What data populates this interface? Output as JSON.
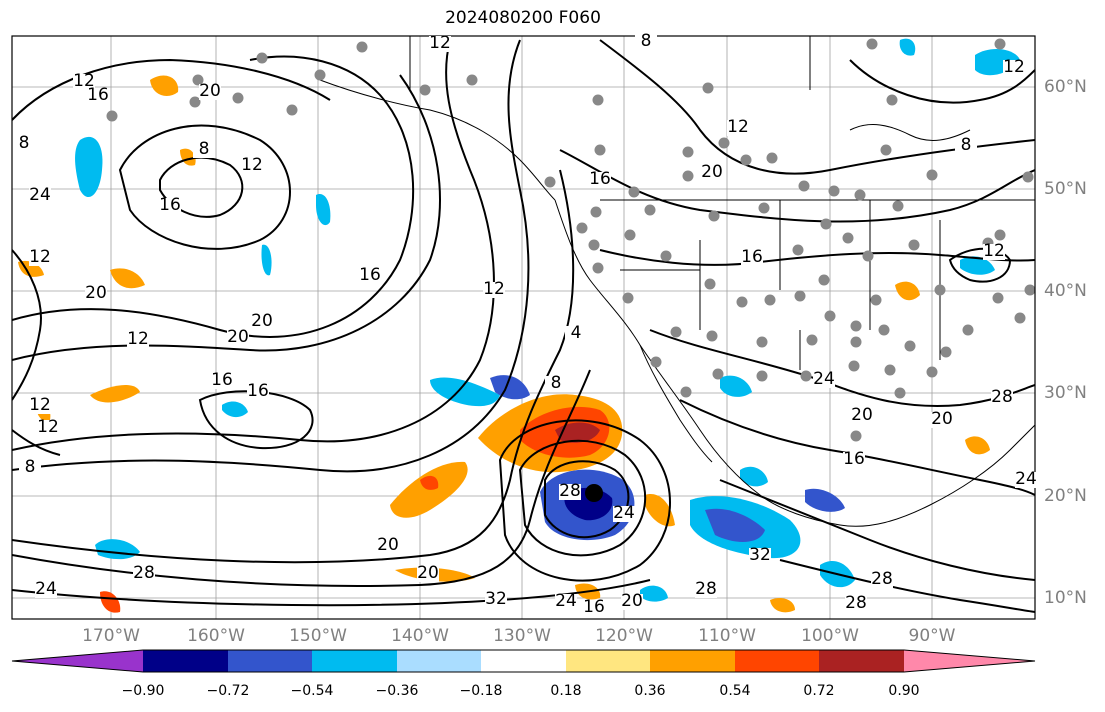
{
  "title": "2024080200 F060",
  "lon_labels": [
    "170°W",
    "160°W",
    "150°W",
    "140°W",
    "130°W",
    "120°W",
    "110°W",
    "100°W",
    "90°W"
  ],
  "lat_labels": [
    "60°N",
    "50°N",
    "40°N",
    "30°N",
    "20°N",
    "10°N"
  ],
  "colorbar": {
    "ticks": [
      "−0.90",
      "−0.72",
      "−0.54",
      "−0.36",
      "−0.18",
      "0.18",
      "0.36",
      "0.54",
      "0.72",
      "0.90"
    ],
    "colors": [
      "#9933cc",
      "#000088",
      "#3355cc",
      "#00bbf0",
      "#aaddff",
      "#ffffff",
      "#ffe680",
      "#ffa000",
      "#ff4500",
      "#aa2222",
      "#ff88aa"
    ]
  },
  "contour_labels": [
    "8",
    "12",
    "20",
    "12",
    "8",
    "12",
    "16",
    "20",
    "24",
    "20",
    "16",
    "8",
    "12",
    "16",
    "20",
    "4",
    "8",
    "12",
    "16",
    "20",
    "12",
    "20",
    "16",
    "12",
    "8",
    "24",
    "28",
    "32",
    "24",
    "16",
    "20",
    "28",
    "32",
    "28",
    "24",
    "20",
    "16",
    "20",
    "28",
    "12",
    "16",
    "20",
    "24",
    "28",
    "24",
    "12",
    "12",
    "16",
    "12",
    "8",
    "28"
  ],
  "fills": {
    "low_center_color": "#000000",
    "station_color": "#888888"
  }
}
